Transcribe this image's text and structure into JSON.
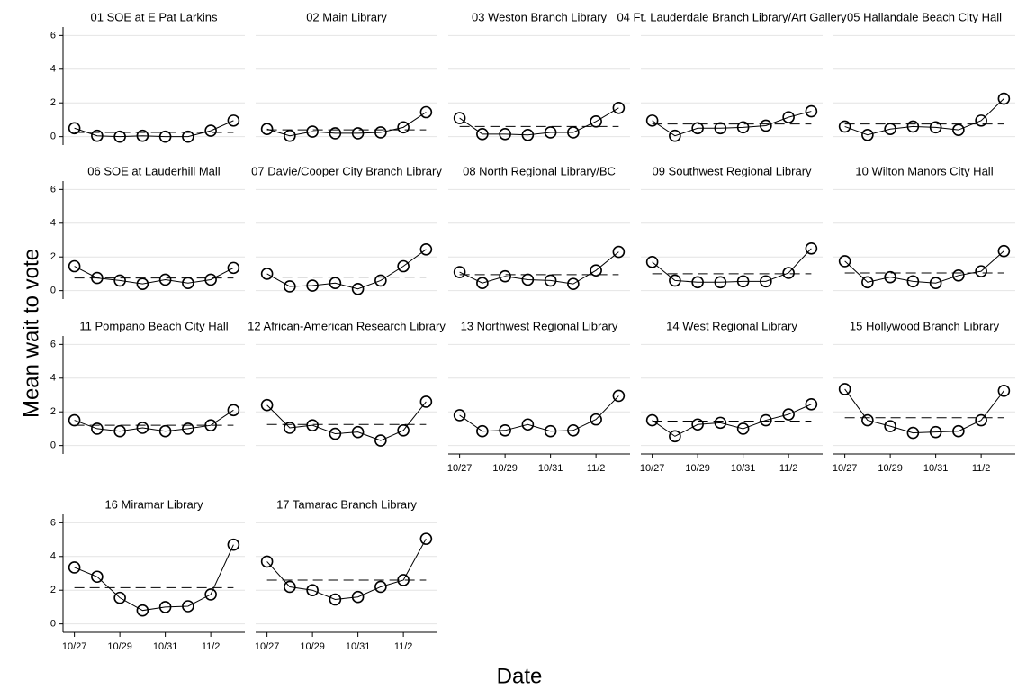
{
  "ylabel": "Mean wait to vote",
  "xlabel": "Date",
  "chart_data": [
    {
      "type": "line",
      "title": "01 SOE at E Pat Larkins",
      "categories": [
        "10/27",
        null,
        "10/29",
        null,
        "10/31",
        null,
        "11/2",
        null
      ],
      "values": [
        0.5,
        0.05,
        0.0,
        0.05,
        0.0,
        0.0,
        0.35,
        0.95
      ],
      "mean": 0.25,
      "ylim": [
        -0.5,
        6.5
      ],
      "yticks": [
        0,
        2,
        4,
        6
      ],
      "grid": true,
      "color": "#000000",
      "show_x_labels": false,
      "show_y_labels": true
    },
    {
      "type": "line",
      "title": "02 Main Library",
      "categories": [
        "10/27",
        null,
        "10/29",
        null,
        "10/31",
        null,
        "11/2",
        null
      ],
      "values": [
        0.45,
        0.05,
        0.3,
        0.2,
        0.2,
        0.25,
        0.55,
        1.45
      ],
      "mean": 0.4,
      "ylim": [
        -0.5,
        6.5
      ],
      "yticks": [
        0,
        2,
        4,
        6
      ],
      "grid": true,
      "color": "#000000",
      "show_x_labels": false,
      "show_y_labels": false
    },
    {
      "type": "line",
      "title": "03 Weston Branch Library",
      "categories": [
        "10/27",
        null,
        "10/29",
        null,
        "10/31",
        null,
        "11/2",
        null
      ],
      "values": [
        1.1,
        0.15,
        0.15,
        0.1,
        0.25,
        0.25,
        0.9,
        1.7
      ],
      "mean": 0.6,
      "ylim": [
        -0.5,
        6.5
      ],
      "yticks": [
        0,
        2,
        4,
        6
      ],
      "grid": true,
      "color": "#000000",
      "show_x_labels": false,
      "show_y_labels": false
    },
    {
      "type": "line",
      "title": "04 Ft. Lauderdale Branch Library/Art Gallery",
      "categories": [
        "10/27",
        null,
        "10/29",
        null,
        "10/31",
        null,
        "11/2",
        null
      ],
      "values": [
        0.95,
        0.05,
        0.5,
        0.5,
        0.55,
        0.65,
        1.15,
        1.5
      ],
      "mean": 0.75,
      "ylim": [
        -0.5,
        6.5
      ],
      "yticks": [
        0,
        2,
        4,
        6
      ],
      "grid": true,
      "color": "#000000",
      "show_x_labels": false,
      "show_y_labels": false
    },
    {
      "type": "line",
      "title": "05 Hallandale Beach City Hall",
      "categories": [
        "10/27",
        null,
        "10/29",
        null,
        "10/31",
        null,
        "11/2",
        null
      ],
      "values": [
        0.6,
        0.1,
        0.45,
        0.6,
        0.55,
        0.4,
        0.95,
        2.25
      ],
      "mean": 0.75,
      "ylim": [
        -0.5,
        6.5
      ],
      "yticks": [
        0,
        2,
        4,
        6
      ],
      "grid": true,
      "color": "#000000",
      "show_x_labels": false,
      "show_y_labels": false
    },
    {
      "type": "line",
      "title": "06 SOE at Lauderhill Mall",
      "categories": [
        "10/27",
        null,
        "10/29",
        null,
        "10/31",
        null,
        "11/2",
        null
      ],
      "values": [
        1.45,
        0.75,
        0.6,
        0.4,
        0.65,
        0.45,
        0.65,
        1.35
      ],
      "mean": 0.75,
      "ylim": [
        -0.5,
        6.5
      ],
      "yticks": [
        0,
        2,
        4,
        6
      ],
      "grid": true,
      "color": "#000000",
      "show_x_labels": false,
      "show_y_labels": true
    },
    {
      "type": "line",
      "title": "07 Davie/Cooper City Branch Library",
      "categories": [
        "10/27",
        null,
        "10/29",
        null,
        "10/31",
        null,
        "11/2",
        null
      ],
      "values": [
        1.0,
        0.25,
        0.3,
        0.45,
        0.1,
        0.6,
        1.45,
        2.45
      ],
      "mean": 0.8,
      "ylim": [
        -0.5,
        6.5
      ],
      "yticks": [
        0,
        2,
        4,
        6
      ],
      "grid": true,
      "color": "#000000",
      "show_x_labels": false,
      "show_y_labels": false
    },
    {
      "type": "line",
      "title": "08 North Regional Library/BC",
      "categories": [
        "10/27",
        null,
        "10/29",
        null,
        "10/31",
        null,
        "11/2",
        null
      ],
      "values": [
        1.1,
        0.45,
        0.85,
        0.65,
        0.6,
        0.4,
        1.2,
        2.3
      ],
      "mean": 0.95,
      "ylim": [
        -0.5,
        6.5
      ],
      "yticks": [
        0,
        2,
        4,
        6
      ],
      "grid": true,
      "color": "#000000",
      "show_x_labels": false,
      "show_y_labels": false
    },
    {
      "type": "line",
      "title": "09 Southwest Regional Library",
      "categories": [
        "10/27",
        null,
        "10/29",
        null,
        "10/31",
        null,
        "11/2",
        null
      ],
      "values": [
        1.7,
        0.6,
        0.5,
        0.5,
        0.55,
        0.55,
        1.05,
        2.5
      ],
      "mean": 1.0,
      "ylim": [
        -0.5,
        6.5
      ],
      "yticks": [
        0,
        2,
        4,
        6
      ],
      "grid": true,
      "color": "#000000",
      "show_x_labels": false,
      "show_y_labels": false
    },
    {
      "type": "line",
      "title": "10 Wilton Manors City Hall",
      "categories": [
        "10/27",
        null,
        "10/29",
        null,
        "10/31",
        null,
        "11/2",
        null
      ],
      "values": [
        1.75,
        0.5,
        0.8,
        0.55,
        0.45,
        0.9,
        1.15,
        2.35
      ],
      "mean": 1.05,
      "ylim": [
        -0.5,
        6.5
      ],
      "yticks": [
        0,
        2,
        4,
        6
      ],
      "grid": true,
      "color": "#000000",
      "show_x_labels": false,
      "show_y_labels": false
    },
    {
      "type": "line",
      "title": "11 Pompano Beach City Hall",
      "categories": [
        "10/27",
        null,
        "10/29",
        null,
        "10/31",
        null,
        "11/2",
        null
      ],
      "values": [
        1.5,
        1.0,
        0.85,
        1.05,
        0.85,
        1.0,
        1.2,
        2.1
      ],
      "mean": 1.2,
      "ylim": [
        -0.5,
        6.5
      ],
      "yticks": [
        0,
        2,
        4,
        6
      ],
      "grid": true,
      "color": "#000000",
      "show_x_labels": false,
      "show_y_labels": true
    },
    {
      "type": "line",
      "title": "12 African-American Research Library",
      "categories": [
        "10/27",
        null,
        "10/29",
        null,
        "10/31",
        null,
        "11/2",
        null
      ],
      "values": [
        2.4,
        1.05,
        1.2,
        0.7,
        0.8,
        0.3,
        0.9,
        2.6
      ],
      "mean": 1.25,
      "ylim": [
        -0.5,
        6.5
      ],
      "yticks": [
        0,
        2,
        4,
        6
      ],
      "grid": true,
      "color": "#000000",
      "show_x_labels": false,
      "show_y_labels": false
    },
    {
      "type": "line",
      "title": "13 Northwest Regional Library",
      "categories": [
        "10/27",
        null,
        "10/29",
        null,
        "10/31",
        null,
        "11/2",
        null
      ],
      "values": [
        1.8,
        0.85,
        0.9,
        1.25,
        0.85,
        0.9,
        1.55,
        2.95
      ],
      "mean": 1.4,
      "ylim": [
        -0.5,
        6.5
      ],
      "yticks": [
        0,
        2,
        4,
        6
      ],
      "grid": true,
      "color": "#000000",
      "show_x_labels": true,
      "show_y_labels": false
    },
    {
      "type": "line",
      "title": "14 West Regional Library",
      "categories": [
        "10/27",
        null,
        "10/29",
        null,
        "10/31",
        null,
        "11/2",
        null
      ],
      "values": [
        1.5,
        0.55,
        1.25,
        1.35,
        1.0,
        1.5,
        1.85,
        2.45
      ],
      "mean": 1.45,
      "ylim": [
        -0.5,
        6.5
      ],
      "yticks": [
        0,
        2,
        4,
        6
      ],
      "grid": true,
      "color": "#000000",
      "show_x_labels": true,
      "show_y_labels": false
    },
    {
      "type": "line",
      "title": "15 Hollywood Branch Library",
      "categories": [
        "10/27",
        null,
        "10/29",
        null,
        "10/31",
        null,
        "11/2",
        null
      ],
      "values": [
        3.35,
        1.5,
        1.15,
        0.75,
        0.8,
        0.85,
        1.5,
        3.25
      ],
      "mean": 1.65,
      "ylim": [
        -0.5,
        6.5
      ],
      "yticks": [
        0,
        2,
        4,
        6
      ],
      "grid": true,
      "color": "#000000",
      "show_x_labels": true,
      "show_y_labels": false
    },
    {
      "type": "line",
      "title": "16 Miramar Library",
      "categories": [
        "10/27",
        null,
        "10/29",
        null,
        "10/31",
        null,
        "11/2",
        null
      ],
      "values": [
        3.35,
        2.8,
        1.55,
        0.8,
        1.0,
        1.05,
        1.75,
        4.7
      ],
      "mean": 2.15,
      "ylim": [
        -0.5,
        6.5
      ],
      "yticks": [
        0,
        2,
        4,
        6
      ],
      "grid": true,
      "color": "#000000",
      "show_x_labels": true,
      "show_y_labels": true
    },
    {
      "type": "line",
      "title": "17 Tamarac Branch Library",
      "categories": [
        "10/27",
        null,
        "10/29",
        null,
        "10/31",
        null,
        "11/2",
        null
      ],
      "values": [
        3.7,
        2.2,
        2.0,
        1.45,
        1.6,
        2.2,
        2.6,
        5.05
      ],
      "mean": 2.6,
      "ylim": [
        -0.5,
        6.5
      ],
      "yticks": [
        0,
        2,
        4,
        6
      ],
      "grid": true,
      "color": "#000000",
      "show_x_labels": true,
      "show_y_labels": false
    }
  ]
}
